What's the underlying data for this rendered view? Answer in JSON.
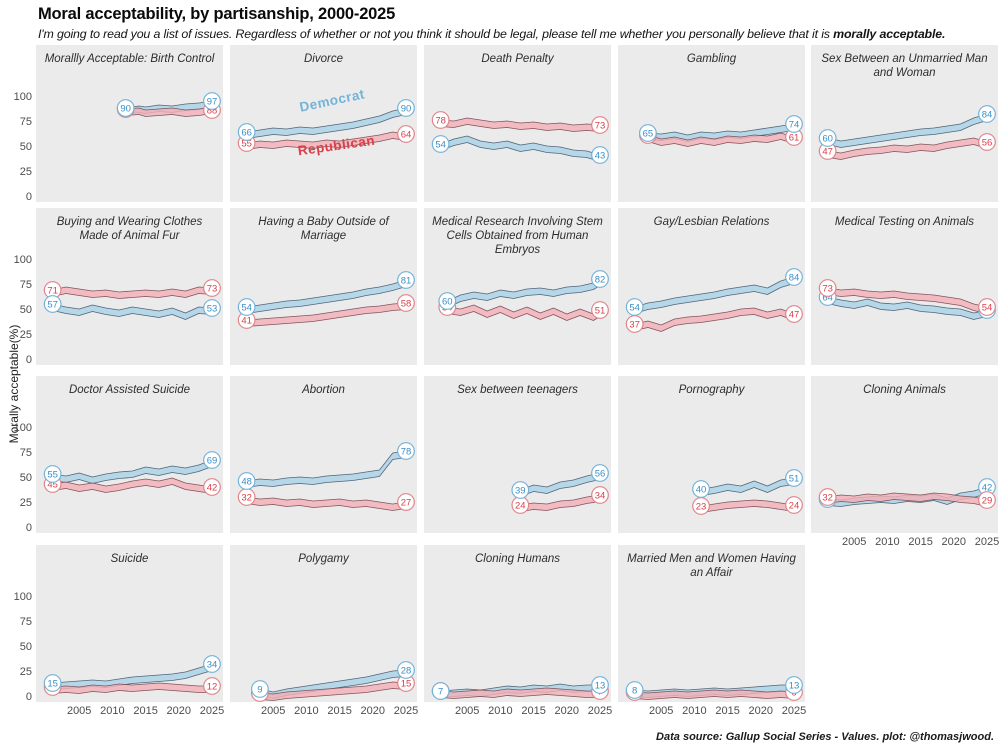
{
  "header": {
    "title": "Moral acceptability, by partisanship, 2000-2025",
    "subtitle_pre": "I'm going to read you a list of issues. Regardless of whether or not you think it should be legal, please tell me whether you personally believe that it is ",
    "subtitle_bold": "morally acceptable."
  },
  "yaxis": {
    "label": "Morally acceptable(%)"
  },
  "footer": {
    "credit": "Data source: Gallup Social Series - Values. plot: @thomasjwood."
  },
  "colors": {
    "panel_bg": "#ebebeb",
    "dem_fill": "#aad2e6",
    "dem_stroke": "#44576b",
    "dem_circle": "#74b3d8",
    "dem_text": "#3a8fc7",
    "rep_fill": "#f1b0b7",
    "rep_stroke": "#74474e",
    "rep_circle": "#e2858b",
    "rep_text": "#d8404a"
  },
  "chart_data": {
    "type": "line",
    "xlim": [
      2000,
      2025
    ],
    "ylim": [
      0,
      100
    ],
    "x_ticks": [
      2005,
      2010,
      2015,
      2020,
      2025
    ],
    "y_ticks": [
      100,
      75,
      50,
      25,
      0
    ],
    "legend": [
      "Democrat",
      "Republican"
    ],
    "panels": [
      {
        "title": "Morallly Acceptable: Birth Control",
        "row": 0,
        "col": 0,
        "years": [
          2012,
          2014,
          2015,
          2017,
          2019,
          2021,
          2023,
          2024,
          2025
        ],
        "dem": [
          90,
          92,
          91,
          93,
          92,
          94,
          95,
          96,
          97
        ],
        "rep": [
          89,
          90,
          88,
          89,
          90,
          88,
          89,
          90,
          88
        ]
      },
      {
        "title": "Divorce",
        "row": 0,
        "col": 1,
        "years": [
          2001,
          2003,
          2005,
          2007,
          2009,
          2011,
          2013,
          2015,
          2017,
          2019,
          2021,
          2023,
          2025
        ],
        "dem": [
          66,
          68,
          70,
          69,
          71,
          70,
          72,
          74,
          76,
          79,
          82,
          87,
          90
        ],
        "rep": [
          55,
          57,
          56,
          58,
          57,
          56,
          58,
          57,
          59,
          61,
          63,
          66,
          64
        ],
        "inline_labels": [
          {
            "text": "Democrat",
            "party": "dem",
            "x": 103,
            "y": 60,
            "rot": -12
          },
          {
            "text": "Republican",
            "party": "rep",
            "x": 107,
            "y": 105,
            "rot": -8
          }
        ]
      },
      {
        "title": "Death Penalty",
        "row": 0,
        "col": 2,
        "years": [
          2001,
          2003,
          2005,
          2007,
          2009,
          2011,
          2013,
          2015,
          2017,
          2019,
          2021,
          2023,
          2025
        ],
        "dem": [
          54,
          59,
          62,
          57,
          55,
          57,
          53,
          55,
          52,
          51,
          48,
          47,
          43
        ],
        "rep": [
          78,
          77,
          80,
          78,
          76,
          77,
          75,
          76,
          74,
          75,
          73,
          74,
          73
        ]
      },
      {
        "title": "Gambling",
        "row": 0,
        "col": 3,
        "years": [
          2003,
          2005,
          2007,
          2009,
          2011,
          2013,
          2015,
          2017,
          2019,
          2021,
          2023,
          2025
        ],
        "dem": [
          65,
          64,
          66,
          63,
          66,
          65,
          67,
          66,
          68,
          70,
          72,
          74
        ],
        "rep": [
          63,
          59,
          61,
          58,
          61,
          59,
          62,
          61,
          63,
          62,
          65,
          61
        ]
      },
      {
        "title": "Sex Between an Unmarried Man and Woman",
        "row": 0,
        "col": 4,
        "years": [
          2001,
          2003,
          2005,
          2007,
          2009,
          2011,
          2013,
          2015,
          2017,
          2019,
          2021,
          2023,
          2025
        ],
        "dem": [
          60,
          57,
          59,
          61,
          63,
          65,
          67,
          69,
          70,
          72,
          74,
          80,
          84
        ],
        "rep": [
          47,
          45,
          48,
          50,
          51,
          53,
          52,
          54,
          53,
          56,
          58,
          60,
          56
        ]
      },
      {
        "title": "Buying and Wearing Clothes Made of Animal Fur",
        "row": 1,
        "col": 0,
        "years": [
          2001,
          2003,
          2005,
          2007,
          2009,
          2011,
          2013,
          2015,
          2017,
          2019,
          2021,
          2023,
          2025
        ],
        "dem": [
          57,
          54,
          52,
          56,
          53,
          51,
          54,
          52,
          50,
          53,
          48,
          54,
          53
        ],
        "rep": [
          71,
          74,
          72,
          70,
          71,
          69,
          70,
          71,
          70,
          72,
          70,
          74,
          73
        ]
      },
      {
        "title": "Having a Baby Outside of Marriage",
        "row": 1,
        "col": 1,
        "years": [
          2001,
          2003,
          2005,
          2007,
          2009,
          2011,
          2013,
          2015,
          2017,
          2019,
          2021,
          2023,
          2025
        ],
        "dem": [
          54,
          56,
          58,
          60,
          61,
          63,
          65,
          67,
          69,
          72,
          74,
          77,
          81
        ],
        "rep": [
          41,
          42,
          43,
          44,
          45,
          46,
          48,
          50,
          52,
          54,
          55,
          57,
          58
        ]
      },
      {
        "title": "Medical Research Involving Stem Cells Obtained from Human Embryos",
        "row": 1,
        "col": 2,
        "years": [
          2002,
          2004,
          2006,
          2008,
          2010,
          2012,
          2014,
          2016,
          2018,
          2020,
          2022,
          2024,
          2025
        ],
        "dem": [
          60,
          66,
          69,
          67,
          71,
          69,
          72,
          73,
          71,
          74,
          75,
          78,
          82
        ],
        "rep": [
          54,
          52,
          56,
          50,
          55,
          49,
          54,
          48,
          53,
          47,
          52,
          47,
          51
        ]
      },
      {
        "title": "Gay/Lesbian Relations",
        "row": 1,
        "col": 3,
        "years": [
          2001,
          2003,
          2005,
          2007,
          2009,
          2011,
          2013,
          2015,
          2017,
          2019,
          2021,
          2023,
          2025
        ],
        "dem": [
          54,
          58,
          60,
          63,
          65,
          67,
          69,
          72,
          74,
          76,
          73,
          80,
          84
        ],
        "rep": [
          37,
          40,
          36,
          42,
          44,
          45,
          47,
          49,
          52,
          53,
          49,
          52,
          47
        ]
      },
      {
        "title": "Medical Testing on Animals",
        "row": 1,
        "col": 4,
        "label_top": "rep",
        "years": [
          2001,
          2003,
          2005,
          2007,
          2009,
          2011,
          2013,
          2015,
          2017,
          2019,
          2021,
          2023,
          2025
        ],
        "dem": [
          64,
          61,
          59,
          62,
          58,
          57,
          59,
          56,
          55,
          53,
          52,
          48,
          51
        ],
        "rep": [
          73,
          71,
          72,
          70,
          69,
          70,
          68,
          67,
          66,
          64,
          62,
          57,
          54
        ]
      },
      {
        "title": "Doctor Assisted Suicide",
        "row": 2,
        "col": 0,
        "years": [
          2001,
          2003,
          2005,
          2007,
          2009,
          2011,
          2013,
          2015,
          2017,
          2019,
          2021,
          2023,
          2025
        ],
        "dem": [
          55,
          53,
          56,
          52,
          55,
          57,
          58,
          62,
          60,
          63,
          61,
          64,
          69
        ],
        "rep": [
          45,
          47,
          44,
          46,
          43,
          45,
          48,
          50,
          48,
          51,
          46,
          44,
          42
        ]
      },
      {
        "title": "Abortion",
        "row": 2,
        "col": 1,
        "years": [
          2001,
          2003,
          2005,
          2007,
          2009,
          2011,
          2013,
          2015,
          2017,
          2019,
          2021,
          2023,
          2025
        ],
        "dem": [
          48,
          50,
          49,
          51,
          52,
          51,
          53,
          54,
          55,
          57,
          59,
          76,
          78
        ],
        "rep": [
          32,
          30,
          31,
          29,
          30,
          28,
          29,
          30,
          28,
          29,
          27,
          25,
          27
        ]
      },
      {
        "title": "Sex between teenagers",
        "row": 2,
        "col": 2,
        "years": [
          2013,
          2015,
          2017,
          2019,
          2021,
          2023,
          2025
        ],
        "dem": [
          39,
          44,
          42,
          47,
          49,
          53,
          56
        ],
        "rep": [
          24,
          26,
          25,
          28,
          29,
          32,
          34
        ]
      },
      {
        "title": "Pornography",
        "row": 2,
        "col": 3,
        "years": [
          2011,
          2013,
          2015,
          2017,
          2019,
          2021,
          2023,
          2025
        ],
        "dem": [
          40,
          42,
          45,
          43,
          48,
          43,
          49,
          51
        ],
        "rep": [
          23,
          25,
          27,
          28,
          29,
          28,
          26,
          24
        ]
      },
      {
        "title": "Cloning Animals",
        "row": 2,
        "col": 4,
        "label_top": "rep",
        "axis_below": true,
        "years": [
          2001,
          2003,
          2005,
          2007,
          2009,
          2011,
          2013,
          2015,
          2017,
          2019,
          2021,
          2023,
          2025
        ],
        "dem": [
          30,
          29,
          31,
          32,
          33,
          32,
          34,
          33,
          35,
          31,
          36,
          38,
          42
        ],
        "rep": [
          32,
          34,
          33,
          35,
          34,
          36,
          35,
          34,
          36,
          35,
          33,
          32,
          29
        ]
      },
      {
        "title": "Suicide",
        "row": 3,
        "col": 0,
        "axis_below": true,
        "years": [
          2001,
          2003,
          2005,
          2007,
          2009,
          2011,
          2013,
          2015,
          2017,
          2019,
          2021,
          2023,
          2025
        ],
        "dem": [
          15,
          16,
          17,
          18,
          17,
          19,
          21,
          22,
          23,
          24,
          26,
          30,
          34
        ],
        "rep": [
          11,
          12,
          11,
          13,
          12,
          14,
          13,
          14,
          15,
          14,
          13,
          12,
          12
        ]
      },
      {
        "title": "Polygamy",
        "row": 3,
        "col": 1,
        "axis_below": true,
        "years": [
          2003,
          2005,
          2007,
          2009,
          2011,
          2013,
          2015,
          2017,
          2019,
          2021,
          2023,
          2025
        ],
        "dem": [
          9,
          6,
          9,
          11,
          13,
          15,
          17,
          19,
          21,
          24,
          27,
          28
        ],
        "rep": [
          5,
          4,
          6,
          7,
          8,
          9,
          10,
          11,
          12,
          14,
          16,
          15
        ]
      },
      {
        "title": "Cloning Humans",
        "row": 3,
        "col": 2,
        "axis_below": true,
        "years": [
          2001,
          2003,
          2005,
          2007,
          2009,
          2011,
          2013,
          2015,
          2017,
          2019,
          2021,
          2023,
          2025
        ],
        "dem": [
          7,
          8,
          9,
          8,
          10,
          12,
          11,
          13,
          12,
          14,
          12,
          13,
          13
        ],
        "rep": [
          7,
          6,
          7,
          8,
          7,
          9,
          8,
          9,
          10,
          9,
          8,
          7,
          7
        ]
      },
      {
        "title": "Married Men and Women Having an Affair",
        "row": 3,
        "col": 3,
        "axis_below": true,
        "years": [
          2001,
          2003,
          2005,
          2007,
          2009,
          2011,
          2013,
          2015,
          2017,
          2019,
          2021,
          2023,
          2025
        ],
        "dem": [
          8,
          7,
          8,
          9,
          8,
          9,
          10,
          9,
          10,
          11,
          12,
          13,
          13
        ],
        "rep": [
          6,
          5,
          6,
          7,
          6,
          7,
          8,
          7,
          8,
          7,
          6,
          7,
          6
        ]
      }
    ]
  }
}
